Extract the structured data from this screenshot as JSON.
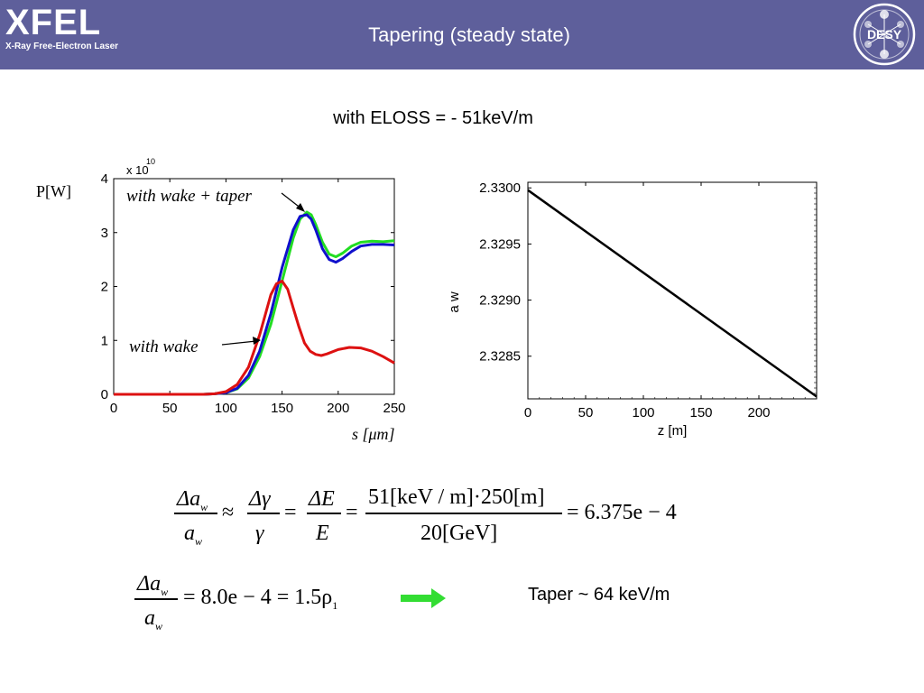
{
  "header": {
    "logo_main": "XFEL",
    "logo_sub": "X-Ray Free-Electron Laser",
    "title": "Tapering (steady state)",
    "desy_label": "DESY"
  },
  "subtitle": "with ELOSS = - 51keV/m",
  "colors": {
    "header_bg": "#5e5f9b",
    "green": "#22dd22",
    "blue": "#1010cc",
    "red": "#dd1111",
    "arrow_green": "#33dd33"
  },
  "chart_data": [
    {
      "type": "line",
      "ylabel": "P[W]",
      "xlabel": "s [μm]",
      "y_multiplier": "x 10",
      "y_multiplier_exp": "10",
      "xlim": [
        0,
        250
      ],
      "ylim": [
        0,
        4
      ],
      "x_ticks": [
        "0",
        "50",
        "100",
        "150",
        "200",
        "250"
      ],
      "y_ticks": [
        "0",
        "1",
        "2",
        "3",
        "4"
      ],
      "annotations": [
        "with wake + taper",
        "with wake"
      ],
      "series": [
        {
          "color": "green",
          "x": [
            0,
            80,
            90,
            100,
            110,
            120,
            130,
            140,
            150,
            160,
            166,
            172,
            176,
            180,
            186,
            192,
            198,
            204,
            212,
            220,
            230,
            240,
            250
          ],
          "y": [
            0,
            0,
            0.01,
            0.03,
            0.1,
            0.3,
            0.7,
            1.3,
            2.1,
            2.9,
            3.25,
            3.38,
            3.33,
            3.15,
            2.82,
            2.6,
            2.55,
            2.62,
            2.75,
            2.82,
            2.84,
            2.83,
            2.85
          ]
        },
        {
          "color": "blue",
          "x": [
            0,
            80,
            90,
            100,
            110,
            120,
            130,
            140,
            150,
            160,
            166,
            172,
            176,
            180,
            186,
            192,
            198,
            204,
            212,
            220,
            230,
            240,
            250
          ],
          "y": [
            0,
            0,
            0.01,
            0.03,
            0.11,
            0.35,
            0.8,
            1.5,
            2.35,
            3.05,
            3.3,
            3.33,
            3.25,
            3.05,
            2.7,
            2.5,
            2.45,
            2.52,
            2.65,
            2.75,
            2.78,
            2.78,
            2.77
          ]
        },
        {
          "color": "red",
          "x": [
            0,
            80,
            90,
            100,
            110,
            120,
            130,
            140,
            145,
            150,
            155,
            160,
            165,
            170,
            175,
            180,
            185,
            190,
            200,
            210,
            220,
            230,
            240,
            250
          ],
          "y": [
            0,
            0,
            0.01,
            0.05,
            0.18,
            0.5,
            1.1,
            1.85,
            2.05,
            2.1,
            1.95,
            1.6,
            1.25,
            0.95,
            0.8,
            0.74,
            0.72,
            0.75,
            0.83,
            0.87,
            0.86,
            0.8,
            0.7,
            0.58
          ]
        }
      ]
    },
    {
      "type": "line",
      "ylabel": "a w",
      "xlabel": "z [m]",
      "xlim": [
        0,
        250
      ],
      "ylim": [
        2.32812,
        2.33005
      ],
      "x_ticks": [
        "0",
        "50",
        "100",
        "150",
        "200"
      ],
      "y_ticks": [
        "2.3285",
        "2.3290",
        "2.3295",
        "2.3300"
      ],
      "series": [
        {
          "color": "black",
          "x": [
            0,
            250
          ],
          "y": [
            2.32998,
            2.32814
          ]
        }
      ]
    }
  ],
  "equation1": {
    "lhs_num": "Δa",
    "lhs_num_sub": "w",
    "lhs_den": "a",
    "lhs_den_sub": "w",
    "approx": "≈",
    "gamma_num": "Δγ",
    "gamma_den": "γ",
    "eq": "=",
    "e_num": "ΔE",
    "e_den": "E",
    "frac_num": "51[keV / m]·250[m]",
    "frac_den": "20[GeV]",
    "result": "= 6.375e − 4"
  },
  "equation2": {
    "lhs_num": "Δa",
    "lhs_num_sub": "w",
    "lhs_den": "a",
    "lhs_den_sub": "w",
    "rhs": "= 8.0e − 4 = 1.5ρ",
    "rhs_sub": "1"
  },
  "taper_note": "Taper ~ 64 keV/m"
}
